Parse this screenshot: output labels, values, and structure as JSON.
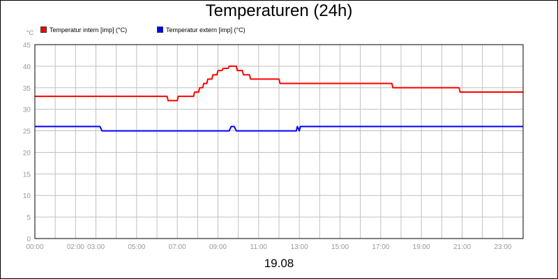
{
  "title": "Temperaturen (24h)",
  "date_label": "19.08",
  "colors": {
    "intern": "#ff0000",
    "extern": "#0000ff",
    "grid": "#c0c0c0",
    "axis": "#000000"
  },
  "chart_data": {
    "type": "line",
    "title": "Temperaturen (24h)",
    "unit_label": "°C",
    "xlabel": "19.08",
    "ylabel": "",
    "ylim": [
      0,
      45
    ],
    "xlim": [
      0,
      24
    ],
    "y_ticks": [
      0,
      5,
      10,
      15,
      20,
      25,
      30,
      35,
      40,
      45
    ],
    "x_ticks": [
      {
        "value": 0,
        "label": "00:00"
      },
      {
        "value": 2,
        "label": "02:00"
      },
      {
        "value": 3,
        "label": "03:00"
      },
      {
        "value": 5,
        "label": "05:00"
      },
      {
        "value": 7,
        "label": "07:00"
      },
      {
        "value": 9,
        "label": "09:00"
      },
      {
        "value": 11,
        "label": "11:00"
      },
      {
        "value": 13,
        "label": "13:00"
      },
      {
        "value": 15,
        "label": "15:00"
      },
      {
        "value": 17,
        "label": "17:00"
      },
      {
        "value": 19,
        "label": "19:00"
      },
      {
        "value": 21,
        "label": "21:00"
      },
      {
        "value": 23,
        "label": "23:00"
      }
    ],
    "grid": true,
    "legend_position": "top-left",
    "series": [
      {
        "name": "Temperatur intern [imp] (°C)",
        "color": "#ff0000",
        "x": [
          0,
          6.5,
          6.55,
          7.0,
          7.05,
          7.8,
          7.85,
          8.05,
          8.1,
          8.25,
          8.3,
          8.45,
          8.5,
          8.7,
          8.75,
          8.95,
          9.0,
          9.2,
          9.25,
          9.5,
          9.55,
          9.9,
          9.95,
          10.2,
          10.25,
          10.55,
          10.6,
          12.0,
          12.05,
          17.55,
          17.6,
          20.85,
          20.9,
          24
        ],
        "y": [
          33,
          33,
          32,
          32,
          33,
          33,
          34,
          34,
          35,
          35,
          36,
          36,
          37,
          37,
          38,
          38,
          39,
          39,
          39.5,
          39.5,
          40,
          40,
          39,
          39,
          38,
          38,
          37,
          37,
          36,
          36,
          35,
          35,
          34,
          34
        ]
      },
      {
        "name": "Temperatur extern [imp] (°C)",
        "color": "#0000ff",
        "x": [
          0,
          3.2,
          3.3,
          9.55,
          9.65,
          9.8,
          9.9,
          12.85,
          12.9,
          13.0,
          13.05,
          24
        ],
        "y": [
          26,
          26,
          25,
          25,
          26,
          26,
          25,
          25,
          26,
          25,
          26,
          26
        ]
      }
    ]
  }
}
